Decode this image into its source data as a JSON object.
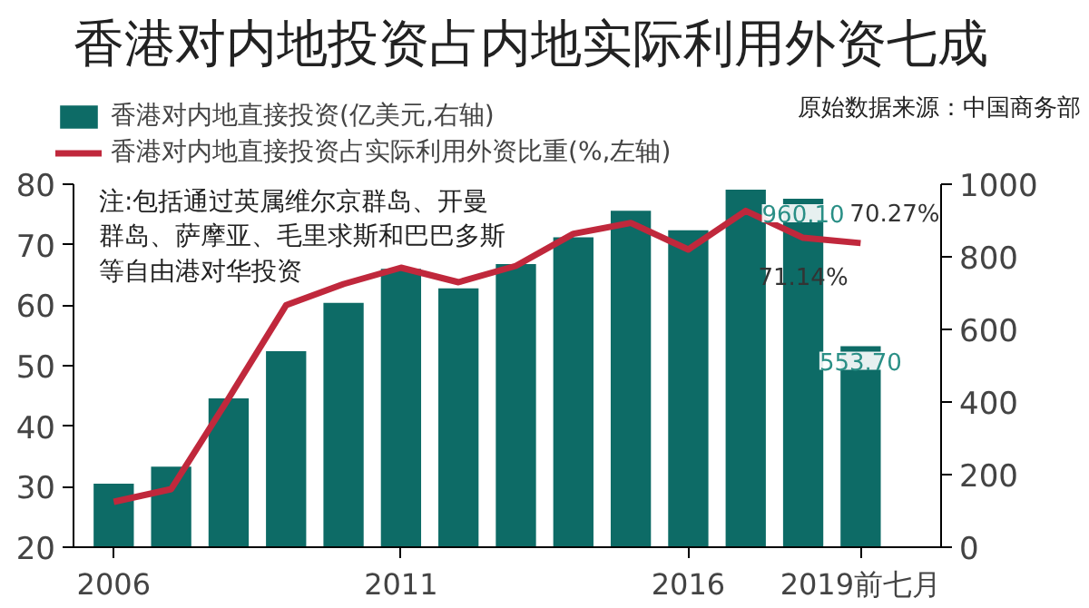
{
  "chart_data": {
    "type": "bar",
    "title": "香港对内地投资占内地实际利用外资七成",
    "annotations": [
      "原始数据来源：中国商务部",
      "注:包括通过英属维尔京群岛、开曼群岛、萨摩亚、毛里求斯和巴巴多斯等自由港对华投资"
    ],
    "categories": [
      "2006",
      null,
      null,
      null,
      null,
      "2011",
      null,
      null,
      null,
      null,
      "2016",
      null,
      null,
      "2019前七月"
    ],
    "series": [
      {
        "name": "香港对内地直接投资(亿美元,右轴)",
        "type": "bar",
        "axis": "y2",
        "color": "#0d6b66",
        "values": [
          175,
          222,
          410,
          540,
          673,
          767,
          713,
          780,
          854,
          927,
          873,
          985,
          960.1,
          553.7
        ],
        "value_labels": [
          null,
          null,
          null,
          null,
          null,
          null,
          null,
          null,
          null,
          null,
          null,
          null,
          "960.10",
          "553.70"
        ]
      },
      {
        "name": "香港对内地直接投资占实际利用外资比重(%,左轴)",
        "type": "line",
        "color": "#c0283c",
        "values": [
          27.5,
          29.6,
          44.6,
          60,
          63.5,
          66.2,
          63.8,
          66.5,
          71.8,
          73.6,
          69.2,
          75.6,
          71.14,
          70.27
        ],
        "value_labels": [
          null,
          null,
          null,
          null,
          null,
          null,
          null,
          null,
          null,
          null,
          null,
          null,
          "71.14%",
          "70.27%"
        ]
      }
    ],
    "ylim": [
      20,
      80
    ],
    "yticks": [
      20,
      30,
      40,
      50,
      60,
      70,
      80
    ],
    "y2lim": [
      0,
      1000
    ],
    "y2ticks": [
      0,
      200,
      400,
      600,
      800,
      1000
    ],
    "grid": false,
    "legend": "top left",
    "marker": "none",
    "line_style": "solid"
  }
}
